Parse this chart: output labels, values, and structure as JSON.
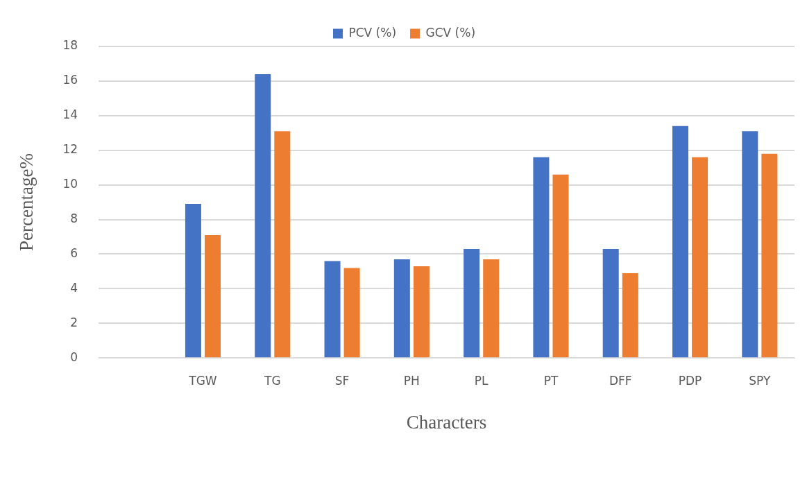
{
  "chart_data": {
    "type": "bar",
    "xlabel": "Characters",
    "ylabel": "Percentage%",
    "categories": [
      null,
      "TGW",
      "TG",
      "SF",
      "PH",
      "PL",
      "PT",
      "DFF",
      "PDP",
      "SPY"
    ],
    "series": [
      {
        "name": "PCV (%)",
        "color": "#4472c4",
        "values": [
          null,
          8.9,
          16.4,
          5.6,
          5.7,
          6.3,
          11.6,
          6.3,
          13.4,
          13.1
        ]
      },
      {
        "name": "GCV (%)",
        "color": "#ed7d31",
        "values": [
          null,
          7.1,
          13.1,
          5.2,
          5.3,
          5.7,
          10.6,
          4.9,
          11.6,
          11.8
        ]
      }
    ],
    "ylim": [
      0,
      18
    ],
    "yticks": [
      0,
      2,
      4,
      6,
      8,
      10,
      12,
      14,
      16,
      18
    ],
    "grid": "y",
    "legend": "top"
  }
}
